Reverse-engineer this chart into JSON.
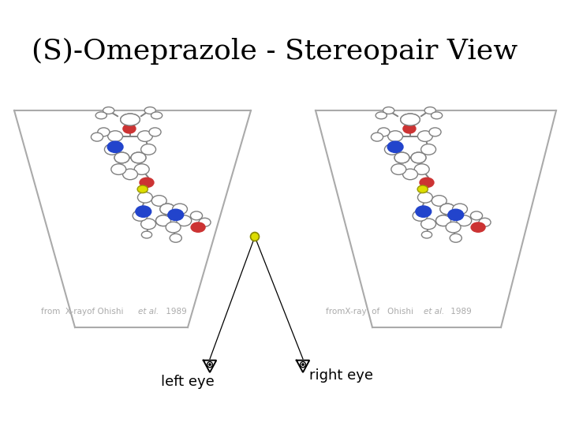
{
  "title": "(S)-Omeprazole - Stereopair View",
  "title_fontsize": 26,
  "background_color": "#ffffff",
  "text_color": "#000000",
  "label_left": "from  X-rayof Ohishi   et al. 1989",
  "label_right": "fromX-ray  of   Ohishi  et al. 1989",
  "eye_left_label": "left eye",
  "eye_right_label": "right eye",
  "gray": "#808080",
  "blue": "#2244cc",
  "red": "#cc3333",
  "yellow": "#dddd00",
  "trap_color": "#aaaaaa",
  "label_color": "#aaaaaa"
}
